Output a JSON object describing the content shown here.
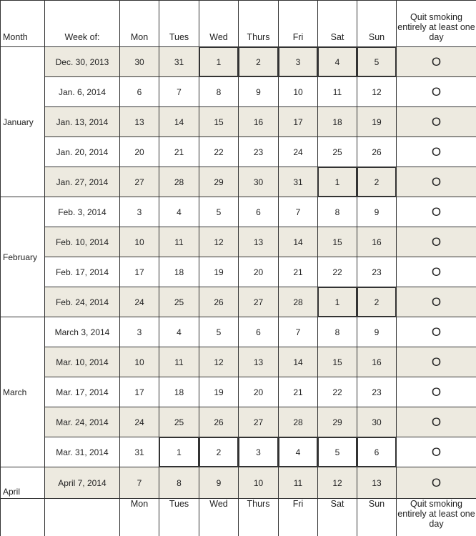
{
  "headers": {
    "month": "Month",
    "week": "Week of:",
    "days": [
      "Mon",
      "Tues",
      "Wed",
      "Thurs",
      "Fri",
      "Sat",
      "Sun"
    ],
    "quit": "Quit smoking entirely at least one day"
  },
  "quit_mark": "O",
  "shade_color": "#edeae0",
  "months": [
    {
      "label": "January",
      "weeks": [
        {
          "week": "Dec. 30, 2013",
          "days": [
            "30",
            "31",
            "1",
            "2",
            "3",
            "4",
            "5"
          ]
        },
        {
          "week": "Jan. 6, 2014",
          "days": [
            "6",
            "7",
            "8",
            "9",
            "10",
            "11",
            "12"
          ]
        },
        {
          "week": "Jan. 13, 2014",
          "days": [
            "13",
            "14",
            "15",
            "16",
            "17",
            "18",
            "19"
          ]
        },
        {
          "week": "Jan. 20, 2014",
          "days": [
            "20",
            "21",
            "22",
            "23",
            "24",
            "25",
            "26"
          ]
        },
        {
          "week": "Jan. 27, 2014",
          "days": [
            "27",
            "28",
            "29",
            "30",
            "31",
            "1",
            "2"
          ]
        }
      ]
    },
    {
      "label": "February",
      "weeks": [
        {
          "week": "Feb. 3, 2014",
          "days": [
            "3",
            "4",
            "5",
            "6",
            "7",
            "8",
            "9"
          ]
        },
        {
          "week": "Feb. 10, 2014",
          "days": [
            "10",
            "11",
            "12",
            "13",
            "14",
            "15",
            "16"
          ]
        },
        {
          "week": "Feb. 17, 2014",
          "days": [
            "17",
            "18",
            "19",
            "20",
            "21",
            "22",
            "23"
          ]
        },
        {
          "week": "Feb. 24, 2014",
          "days": [
            "24",
            "25",
            "26",
            "27",
            "28",
            "1",
            "2"
          ]
        }
      ]
    },
    {
      "label": "March",
      "weeks": [
        {
          "week": "March 3, 2014",
          "days": [
            "3",
            "4",
            "5",
            "6",
            "7",
            "8",
            "9"
          ]
        },
        {
          "week": "Mar. 10, 2014",
          "days": [
            "10",
            "11",
            "12",
            "13",
            "14",
            "15",
            "16"
          ]
        },
        {
          "week": "Mar. 17, 2014",
          "days": [
            "17",
            "18",
            "19",
            "20",
            "21",
            "22",
            "23"
          ]
        },
        {
          "week": "Mar. 24, 2014",
          "days": [
            "24",
            "25",
            "26",
            "27",
            "28",
            "29",
            "30"
          ]
        },
        {
          "week": "Mar. 31, 2014",
          "days": [
            "31",
            "1",
            "2",
            "3",
            "4",
            "5",
            "6"
          ]
        }
      ]
    },
    {
      "label": "April",
      "weeks": [
        {
          "week": "April 7, 2014",
          "days": [
            "7",
            "8",
            "9",
            "10",
            "11",
            "12",
            "13"
          ]
        }
      ]
    }
  ]
}
